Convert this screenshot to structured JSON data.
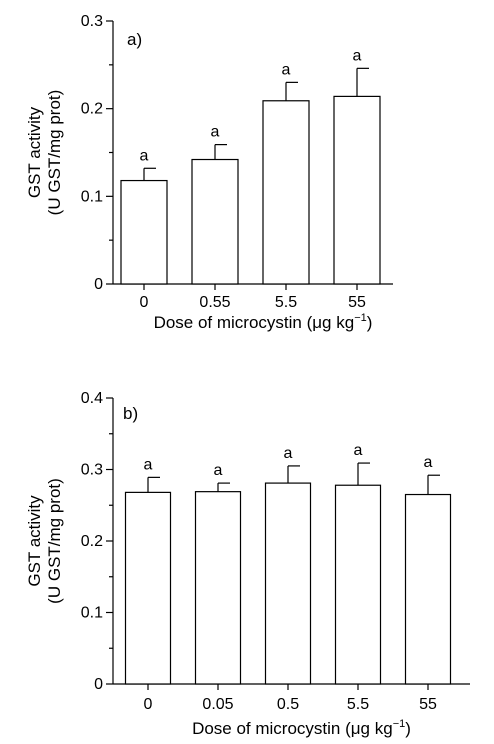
{
  "chart_data": [
    {
      "type": "bar",
      "panel_label": "a)",
      "categories": [
        "0",
        "0.55",
        "5.5",
        "55"
      ],
      "values": [
        0.118,
        0.142,
        0.209,
        0.214
      ],
      "errors": [
        0.014,
        0.017,
        0.021,
        0.032
      ],
      "significance": [
        "a",
        "a",
        "a",
        "a"
      ],
      "ylabel_line1": "GST activity",
      "ylabel_line2": "(U GST/mg prot)",
      "xlabel": "Dose of microcystin (μg kg",
      "xlabel_sup": "−1",
      "xlabel_end": ")",
      "ylim": [
        0,
        0.3
      ],
      "yticks": [
        "0",
        "0.1",
        "0.2",
        "0.3"
      ],
      "grid": false
    },
    {
      "type": "bar",
      "panel_label": "b)",
      "categories": [
        "0",
        "0.05",
        "0.5",
        "5.5",
        "55"
      ],
      "values": [
        0.268,
        0.269,
        0.281,
        0.278,
        0.265
      ],
      "errors": [
        0.021,
        0.012,
        0.024,
        0.031,
        0.027
      ],
      "significance": [
        "a",
        "a",
        "a",
        "a",
        "a"
      ],
      "ylabel_line1": "GST activity",
      "ylabel_line2": "(U GST/mg prot)",
      "xlabel": "Dose of microcystin (μg kg",
      "xlabel_sup": "−1",
      "xlabel_end": ")",
      "ylim": [
        0,
        0.4
      ],
      "yticks": [
        "0",
        "0.1",
        "0.2",
        "0.3",
        "0.4"
      ],
      "grid": false
    }
  ]
}
